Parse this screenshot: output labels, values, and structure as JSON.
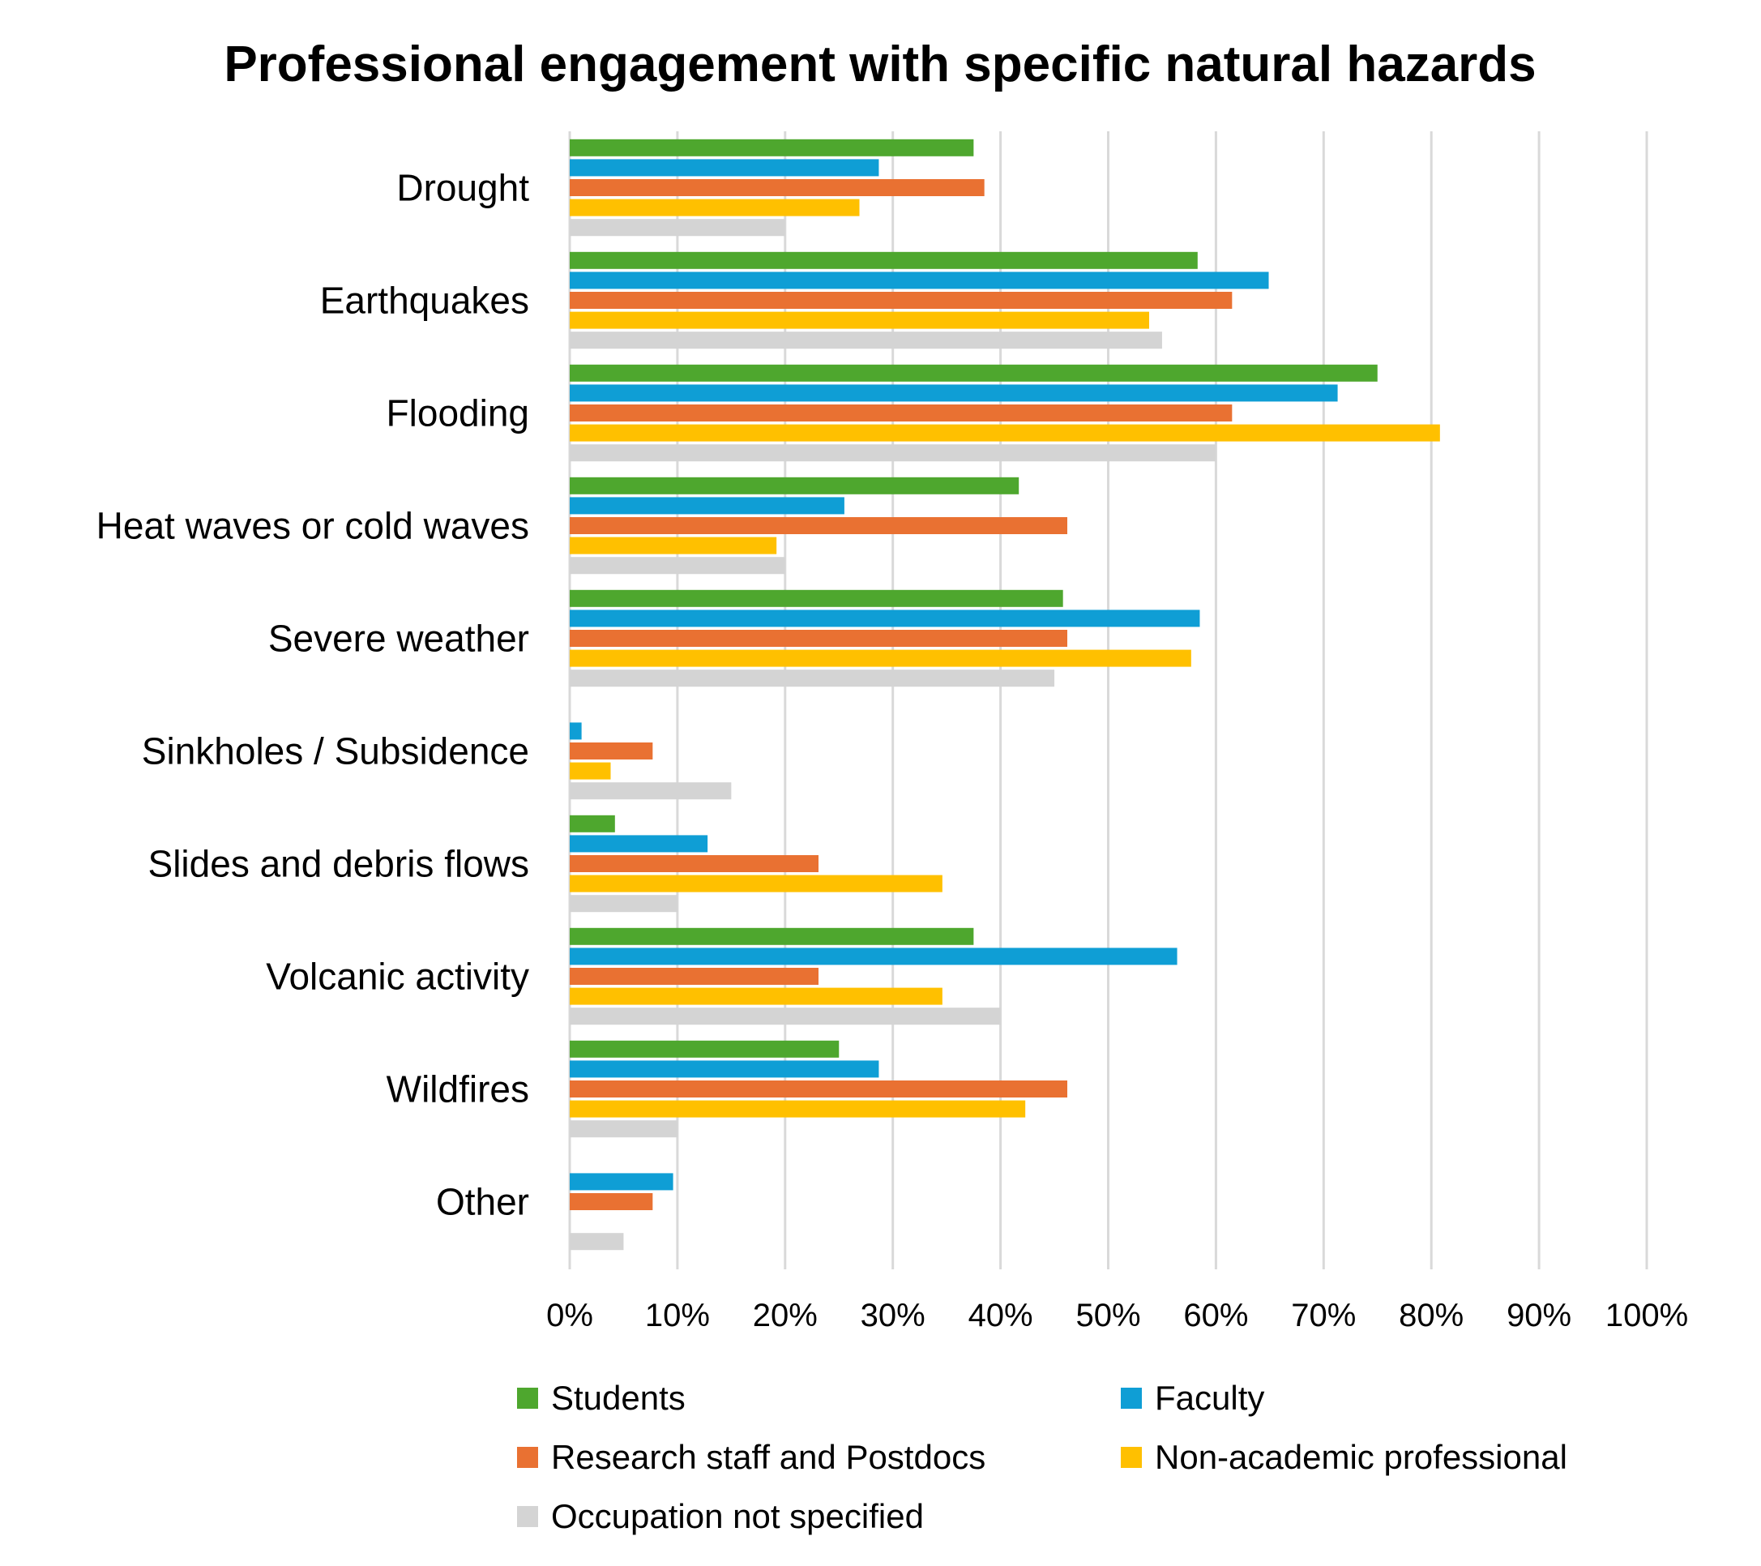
{
  "chart_data": {
    "type": "bar",
    "orientation": "horizontal",
    "title": "Professional engagement with specific natural hazards",
    "xlabel": "",
    "ylabel": "",
    "xlim": [
      0,
      100
    ],
    "x_unit": "%",
    "grid": "vertical",
    "legend_position": "bottom",
    "categories": [
      "Drought",
      "Earthquakes",
      "Flooding",
      "Heat waves or cold waves",
      "Severe weather",
      "Sinkholes / Subsidence",
      "Slides and debris flows",
      "Volcanic activity",
      "Wildfires",
      "Other"
    ],
    "tick_labels": [
      "0%",
      "10%",
      "20%",
      "30%",
      "40%",
      "50%",
      "60%",
      "70%",
      "80%",
      "90%",
      "100%"
    ],
    "series": [
      {
        "name": "Students",
        "color": "#4ea72e",
        "values": [
          37.5,
          58.3,
          75.0,
          41.7,
          45.8,
          0,
          4.2,
          37.5,
          25.0,
          0
        ]
      },
      {
        "name": "Faculty",
        "color": "#0f9ed5",
        "values": [
          28.7,
          64.9,
          71.3,
          25.5,
          58.5,
          1.1,
          12.8,
          56.4,
          28.7,
          9.6
        ]
      },
      {
        "name": "Research staff and Postdocs",
        "color": "#e97132",
        "values": [
          38.5,
          61.5,
          61.5,
          46.2,
          46.2,
          7.7,
          23.1,
          23.1,
          46.2,
          7.7
        ]
      },
      {
        "name": "Non-academic professional",
        "color": "#ffc000",
        "values": [
          26.9,
          53.8,
          80.8,
          19.2,
          57.7,
          3.8,
          34.6,
          34.6,
          42.3,
          0
        ]
      },
      {
        "name": "Occupation not specified",
        "color": "#d4d4d4",
        "values": [
          20.0,
          55.0,
          60.0,
          20.0,
          45.0,
          15.0,
          10.0,
          40.0,
          10.0,
          5.0
        ]
      }
    ],
    "legend_layout": [
      [
        "Students",
        "Faculty"
      ],
      [
        "Research staff and Postdocs",
        "Non-academic professional"
      ],
      [
        "Occupation not specified"
      ]
    ]
  }
}
